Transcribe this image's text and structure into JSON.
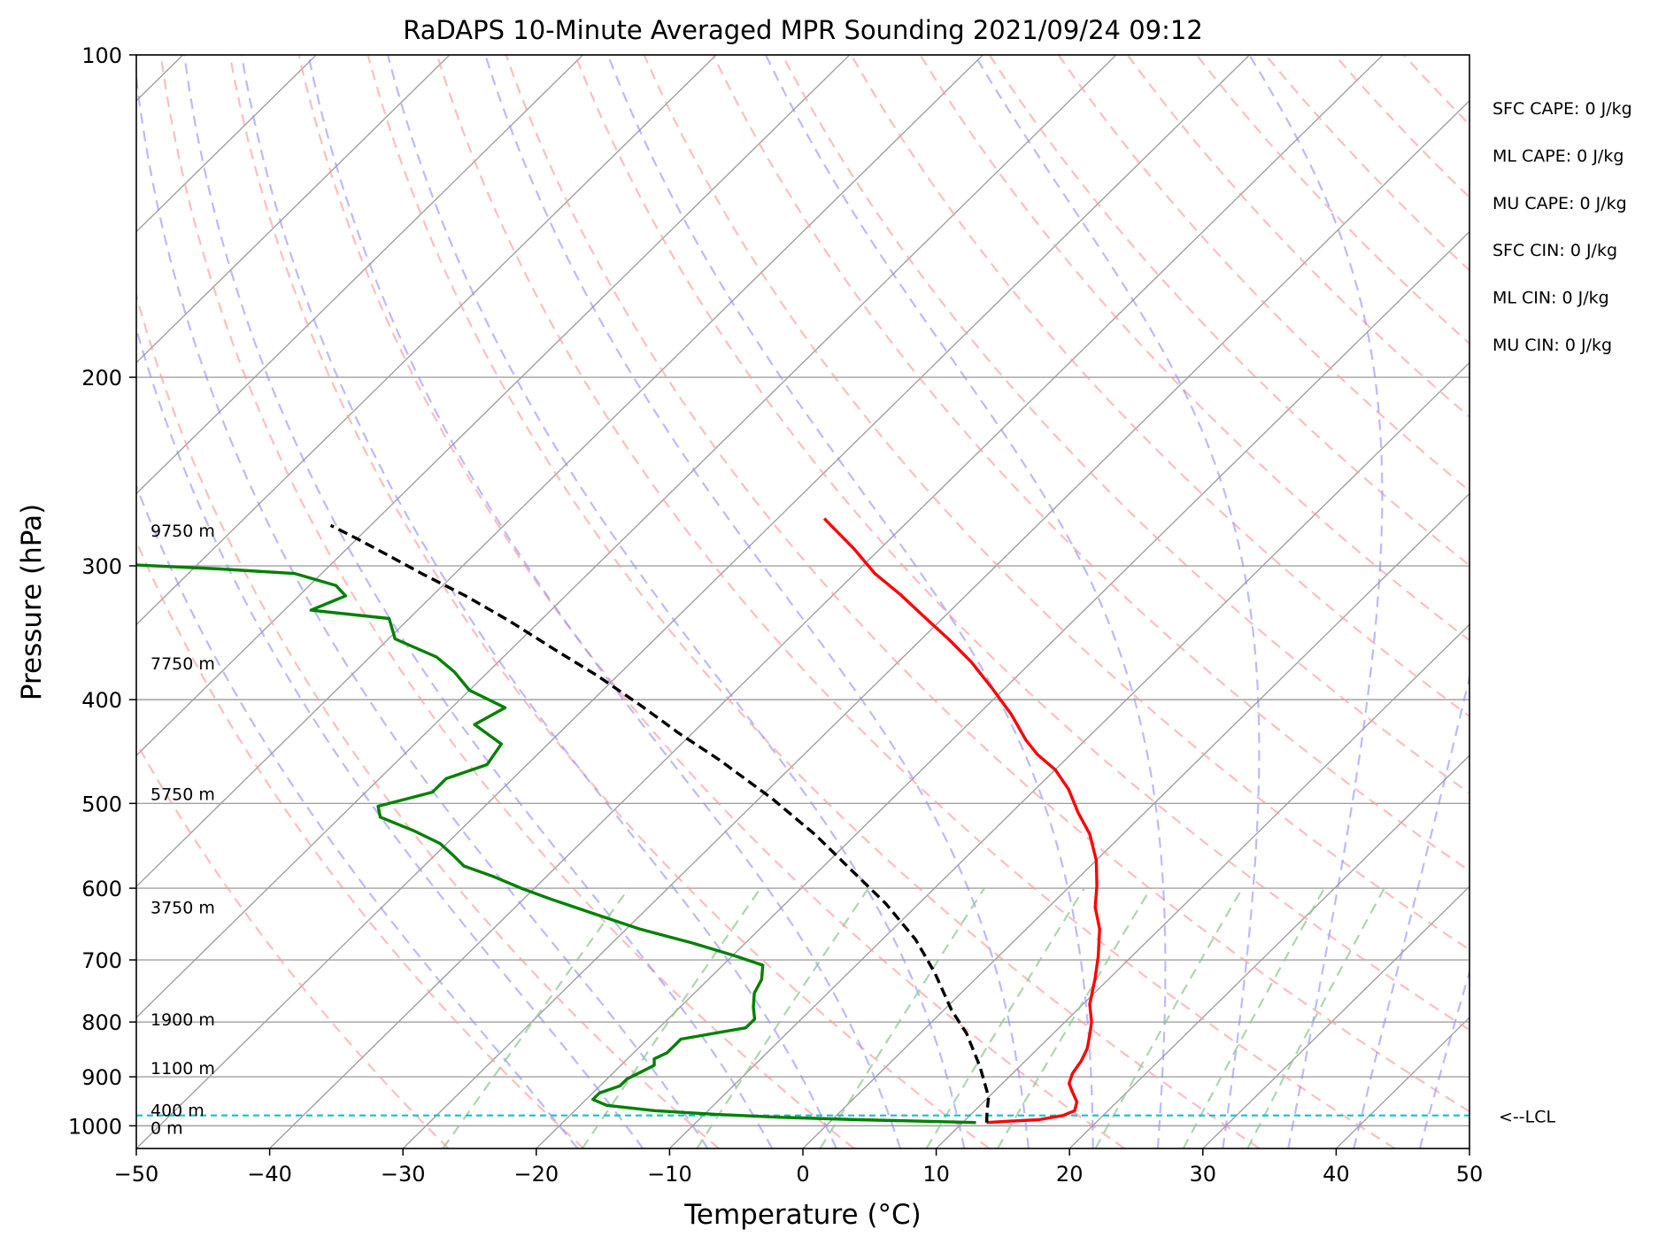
{
  "chart_data": {
    "type": "line",
    "title": "RaDAPS 10-Minute Averaged MPR Sounding 2021/09/24 09:12",
    "xlabel": "Temperature (°C)",
    "ylabel": "Pressure (hPa)",
    "xlim": [
      -50,
      50
    ],
    "ylim": [
      1050,
      100
    ],
    "y_scale": "log",
    "x_ticks": [
      "−50",
      "−40",
      "−30",
      "−20",
      "−10",
      "0",
      "10",
      "20",
      "30",
      "40",
      "50"
    ],
    "y_ticks": [
      "100",
      "200",
      "300",
      "400",
      "500",
      "600",
      "700",
      "800",
      "900",
      "1000"
    ],
    "grid": true,
    "skew": true,
    "series": [
      {
        "color": "#ff0000",
        "points": [
          [
            11.8,
            993
          ],
          [
            13.5,
            990
          ],
          [
            15.5,
            987
          ],
          [
            17,
            978
          ],
          [
            17.5,
            968
          ],
          [
            17,
            950
          ],
          [
            15.8,
            928
          ],
          [
            15,
            913
          ],
          [
            14.5,
            894
          ],
          [
            14.2,
            870
          ],
          [
            13.7,
            847
          ],
          [
            13,
            827
          ],
          [
            12,
            800
          ],
          [
            10.5,
            770
          ],
          [
            9,
            730
          ],
          [
            7.5,
            695
          ],
          [
            5.5,
            655
          ],
          [
            3.5,
            625
          ],
          [
            2,
            597
          ],
          [
            0,
            565
          ],
          [
            -2.5,
            534
          ],
          [
            -5,
            510
          ],
          [
            -7.5,
            485
          ],
          [
            -10,
            465
          ],
          [
            -12.5,
            450
          ],
          [
            -14.5,
            436
          ],
          [
            -17.5,
            413
          ],
          [
            -21,
            390
          ],
          [
            -24.5,
            369
          ],
          [
            -28,
            351
          ],
          [
            -31,
            337
          ],
          [
            -35,
            319
          ],
          [
            -38.5,
            305
          ],
          [
            -42,
            289
          ],
          [
            -46.5,
            271
          ]
        ]
      },
      {
        "color": "#008000",
        "points": [
          [
            11,
            993
          ],
          [
            2,
            987
          ],
          [
            -4,
            982
          ],
          [
            -9,
            976
          ],
          [
            -14,
            968
          ],
          [
            -18,
            957
          ],
          [
            -19.5,
            945
          ],
          [
            -19.5,
            932
          ],
          [
            -18.5,
            918
          ],
          [
            -18.5,
            904
          ],
          [
            -18,
            891
          ],
          [
            -17.5,
            878
          ],
          [
            -18,
            866
          ],
          [
            -17.5,
            855
          ],
          [
            -17.5,
            830
          ],
          [
            -13.5,
            810
          ],
          [
            -13.5,
            795
          ],
          [
            -14.5,
            775
          ],
          [
            -15.5,
            752
          ],
          [
            -16,
            730
          ],
          [
            -17,
            708
          ],
          [
            -20,
            693
          ],
          [
            -24,
            675
          ],
          [
            -29,
            655
          ],
          [
            -34,
            632
          ],
          [
            -38,
            614
          ],
          [
            -41,
            600
          ],
          [
            -44,
            585
          ],
          [
            -47,
            572
          ],
          [
            -48.5,
            560
          ],
          [
            -50.5,
            545
          ],
          [
            -53.5,
            530
          ],
          [
            -57,
            515
          ],
          [
            -58,
            503
          ],
          [
            -55,
            488
          ],
          [
            -55,
            474
          ],
          [
            -53,
            460
          ],
          [
            -53.5,
            440
          ],
          [
            -57,
            422
          ],
          [
            -56,
            407
          ],
          [
            -60,
            392
          ],
          [
            -62.5,
            377
          ],
          [
            -65,
            365
          ],
          [
            -69.5,
            351
          ],
          [
            -71.5,
            336
          ],
          [
            -78,
            330
          ],
          [
            -76.5,
            320
          ],
          [
            -78,
            313
          ],
          [
            -82,
            305
          ],
          [
            -88,
            302
          ],
          [
            -106,
            295
          ]
        ]
      },
      {
        "color": "#000000",
        "dashed": true,
        "points": [
          [
            11.8,
            993
          ],
          [
            11,
            970
          ],
          [
            10,
            940
          ],
          [
            7,
            880
          ],
          [
            3.5,
            820
          ],
          [
            0.6,
            780
          ],
          [
            -3.5,
            720
          ],
          [
            -7.5,
            670
          ],
          [
            -12.5,
            620
          ],
          [
            -18.5,
            570
          ],
          [
            -23,
            535
          ],
          [
            -29,
            495
          ],
          [
            -36,
            455
          ],
          [
            -41,
            430
          ],
          [
            -46,
            405
          ],
          [
            -51.5,
            380
          ],
          [
            -56.5,
            360
          ],
          [
            -62.5,
            337
          ],
          [
            -67.5,
            320
          ],
          [
            -72.5,
            305
          ],
          [
            -76.5,
            293
          ],
          [
            -80,
            283
          ],
          [
            -83,
            275
          ]
        ]
      }
    ],
    "lcl_pressure": 978,
    "lcl_label": "<--LCL",
    "height_labels": [
      {
        "text": "9750 m",
        "p": 278
      },
      {
        "text": "7750 m",
        "p": 370
      },
      {
        "text": "5750 m",
        "p": 490
      },
      {
        "text": "3750 m",
        "p": 625
      },
      {
        "text": "1900 m",
        "p": 795
      },
      {
        "text": "1100 m",
        "p": 883
      },
      {
        "text": "400 m",
        "p": 967
      },
      {
        "text": "0 m",
        "p": 1004
      }
    ],
    "annotations": [
      "SFC CAPE: 0 J/kg",
      "ML CAPE: 0 J/kg",
      "MU CAPE: 0 J/kg",
      "SFC CIN: 0 J/kg",
      "ML CIN: 0 J/kg",
      "MU CIN: 0 J/kg"
    ],
    "colors": {
      "isotherm": "#a0a0a0",
      "dry_adiabat": "#ff9a9a",
      "moist_adiabat": "#8c8cff",
      "mixing_ratio": "#90c890",
      "lcl_line": "#17becf"
    }
  }
}
